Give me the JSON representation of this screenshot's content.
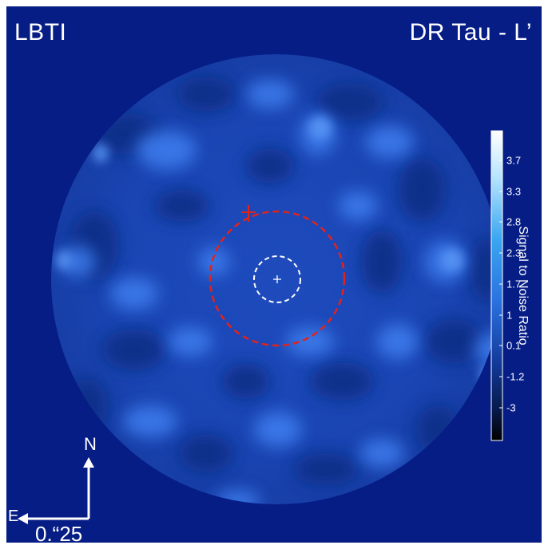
{
  "title_left": "LBTI",
  "title_right": "DR Tau - L’",
  "colorbar": {
    "label": "Signal to Noise Ratio",
    "ticks": [
      "3.7",
      "3.3",
      "2.8",
      "2.3",
      "1.7",
      "1",
      "0.1",
      "-1.2",
      "-3"
    ]
  },
  "compass": {
    "north": "N",
    "east": "E",
    "scale": "0.“25"
  },
  "colors": {
    "background": "#061d86",
    "inner_circle": "#ffffff",
    "outer_circle": "#e2231a",
    "marker": "#e2231a"
  }
}
